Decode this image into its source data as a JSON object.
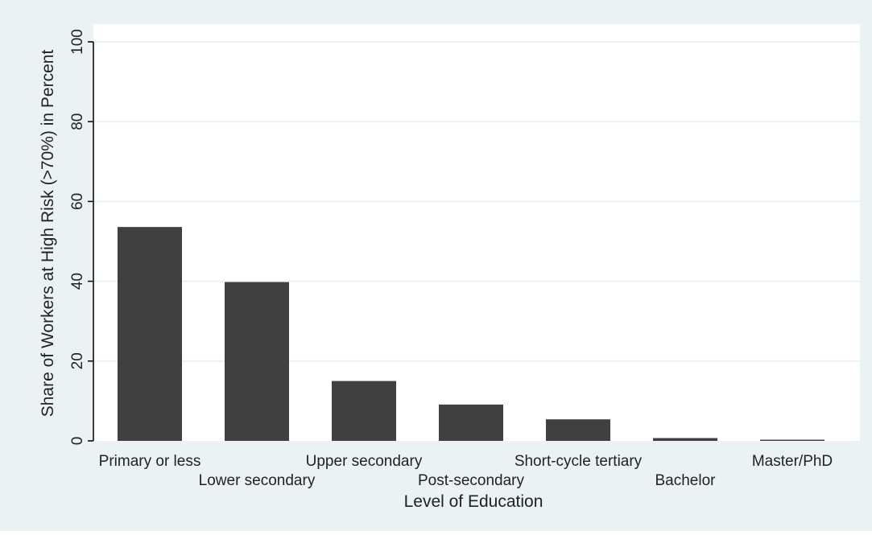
{
  "chart_data": {
    "type": "bar",
    "title": "",
    "xlabel": "Level of Education",
    "ylabel": "Share of Workers at High Risk (>70%) in Percent",
    "categories": [
      "Primary or less",
      "Lower secondary",
      "Upper secondary",
      "Post-secondary",
      "Short-cycle tertiary",
      "Bachelor",
      "Master/PhD"
    ],
    "values": [
      53.6,
      39.8,
      15.0,
      9.1,
      5.4,
      0.7,
      0.3
    ],
    "ylim": [
      0,
      100
    ],
    "yticks": [
      0,
      20,
      40,
      60,
      80,
      100
    ],
    "ytick_labels": [
      "0",
      "20",
      "40",
      "60",
      "80",
      "100"
    ],
    "grid": true,
    "legend": "none",
    "colors": {
      "outer_background": "#eaf2f3",
      "plot_background": "#ffffff",
      "bar": "#404040",
      "gridline": "#eaf2f3",
      "axis": "#000000"
    }
  }
}
